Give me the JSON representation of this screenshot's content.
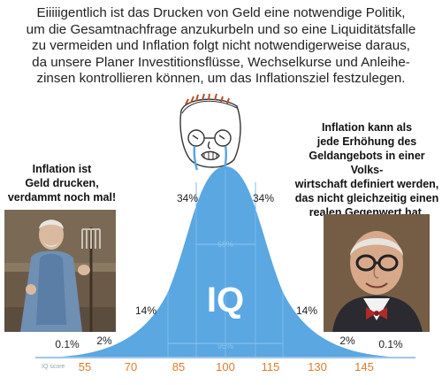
{
  "header": {
    "lines": [
      "Eiiiiigentlich ist das Drucken von Geld eine notwendige Politik,",
      "um die Gesamtnachfrage anzukurbeln und so eine Liquiditätsfalle",
      "zu vermeiden und Inflation folgt nicht notwendigerweise daraus,",
      "da unsere Planer Investitionsflüsse, Wechselkurse und Anleihe-",
      "zinsen kontrollieren können, um das Inflationsziel festzulegen."
    ]
  },
  "left_quote": {
    "lines": [
      "Inflation ist",
      "Geld drucken,",
      "verdammt noch mal!"
    ]
  },
  "right_quote": {
    "lines": [
      "Inflation kann als",
      "jede Erhöhung des",
      "Geldangebots in einer Volks-",
      "wirtschaft definiert werden,",
      "das nicht gleichzeitig einen",
      "realen Gegenwert hat."
    ]
  },
  "chart": {
    "center_label": "IQ",
    "axis_label": "IQ score",
    "ticks": [
      "55",
      "70",
      "85",
      "100",
      "115",
      "130",
      "145"
    ],
    "percentages": {
      "far_left": "0.1%",
      "left_2": "2%",
      "left_14": "14%",
      "left_34": "34%",
      "right_34": "34%",
      "right_14": "14%",
      "right_2": "2%",
      "far_right": "0.1%"
    },
    "inner_68": "68%",
    "inner_95": "95%"
  },
  "colors": {
    "curve_fill": "#5aa7e2",
    "curve_dark": "#4a93cf",
    "axis": "#9cc7ea",
    "tick_text": "#e07a2c"
  }
}
